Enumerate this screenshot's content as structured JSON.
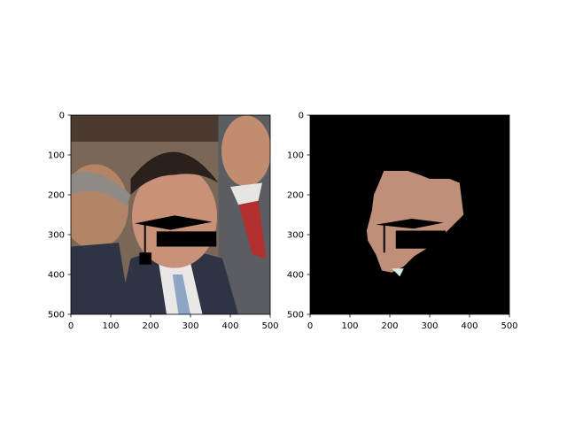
{
  "chart_data": [
    {
      "type": "image",
      "name": "left",
      "description_visible": "cropped photo with black graduation-cap overlay",
      "xlim": [
        0,
        500
      ],
      "ylim": [
        500,
        0
      ],
      "xticks": [
        0,
        100,
        200,
        300,
        400,
        500
      ],
      "yticks": [
        0,
        100,
        200,
        300,
        400,
        500
      ],
      "xtick_labels": [
        "0",
        "100",
        "200",
        "300",
        "400",
        "500"
      ],
      "ytick_labels": [
        "0",
        "100",
        "200",
        "300",
        "400",
        "500"
      ],
      "overlay_shapes": {
        "cap_board": [
          [
            160,
            272
          ],
          [
            260,
            252
          ],
          [
            355,
            268
          ],
          [
            250,
            288
          ]
        ],
        "cap_base": [
          [
            215,
            292
          ],
          [
            365,
            292
          ],
          [
            365,
            330
          ],
          [
            215,
            330
          ]
        ],
        "tassel_line": [
          [
            186,
            272
          ],
          [
            186,
            345
          ]
        ],
        "tassel": [
          [
            172,
            345
          ],
          [
            202,
            345
          ],
          [
            202,
            375
          ],
          [
            172,
            375
          ]
        ]
      }
    },
    {
      "type": "image",
      "name": "right",
      "description_visible": "masked face region on black background",
      "xlim": [
        0,
        500
      ],
      "ylim": [
        500,
        0
      ],
      "xticks": [
        0,
        100,
        200,
        300,
        400,
        500
      ],
      "yticks": [
        0,
        100,
        200,
        300,
        400,
        500
      ],
      "xtick_labels": [
        "0",
        "100",
        "200",
        "300",
        "400",
        "500"
      ],
      "ytick_labels": [
        "0",
        "100",
        "200",
        "300",
        "400",
        "500"
      ],
      "mask_region": [
        [
          185,
          140
        ],
        [
          245,
          140
        ],
        [
          275,
          150
        ],
        [
          300,
          160
        ],
        [
          350,
          160
        ],
        [
          375,
          170
        ],
        [
          385,
          250
        ],
        [
          365,
          270
        ],
        [
          335,
          300
        ],
        [
          300,
          330
        ],
        [
          260,
          355
        ],
        [
          235,
          380
        ],
        [
          205,
          395
        ],
        [
          180,
          390
        ],
        [
          165,
          350
        ],
        [
          145,
          315
        ],
        [
          142,
          290
        ],
        [
          155,
          240
        ],
        [
          160,
          200
        ],
        [
          175,
          165
        ]
      ]
    }
  ],
  "colors": {
    "left_bg_top": "#4a3a2f",
    "left_bg_mid": "#7a6758",
    "left_face": "#c99278",
    "left_suit": "#2f3445",
    "left_shirt": "#e9e8e6",
    "left_tie": "#b33030",
    "right_bg": "#000000",
    "right_face": "#c08f79",
    "mask_black": "#000000"
  }
}
